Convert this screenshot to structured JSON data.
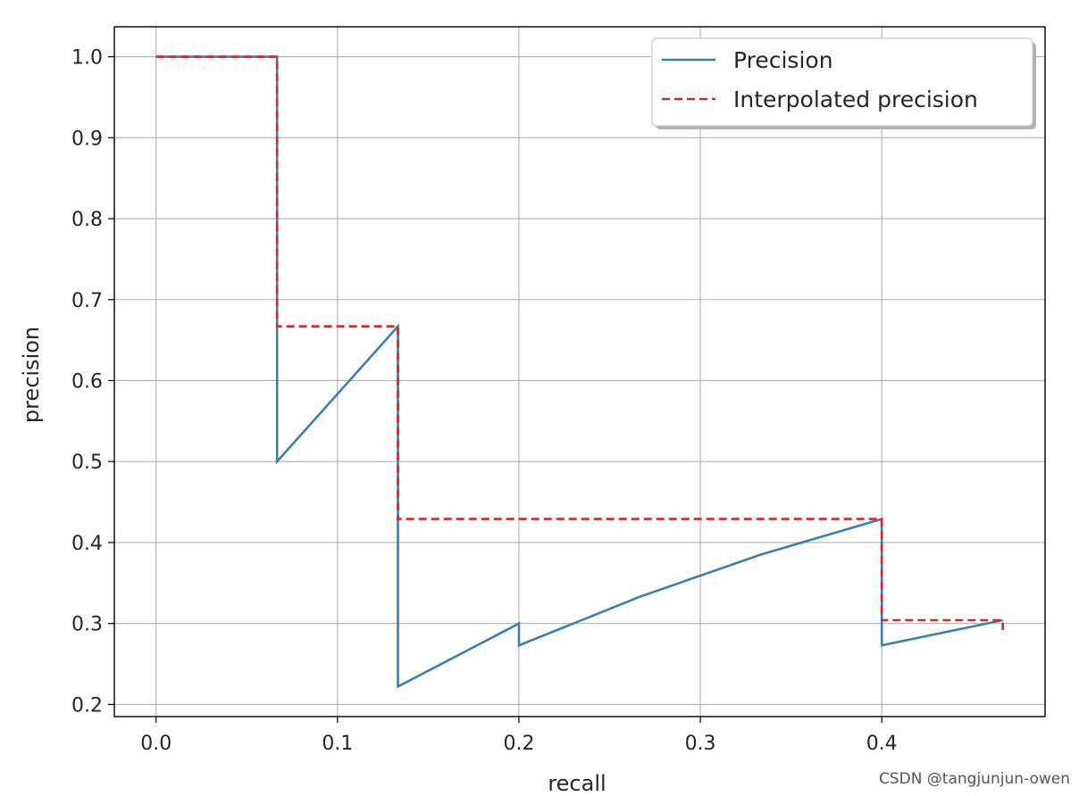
{
  "chart_data": {
    "type": "line",
    "xlabel": "recall",
    "ylabel": "precision",
    "xlim": [
      -0.023,
      0.49
    ],
    "ylim": [
      0.185,
      1.037
    ],
    "xticks": [
      "0.0",
      "0.1",
      "0.2",
      "0.3",
      "0.4"
    ],
    "xtick_values": [
      0.0,
      0.1,
      0.2,
      0.3,
      0.4
    ],
    "yticks": [
      "0.2",
      "0.3",
      "0.4",
      "0.5",
      "0.6",
      "0.7",
      "0.8",
      "0.9",
      "1.0"
    ],
    "ytick_values": [
      0.2,
      0.3,
      0.4,
      0.5,
      0.6,
      0.7,
      0.8,
      0.9,
      1.0
    ],
    "grid": true,
    "legend_position": "top-right",
    "series": [
      {
        "name": "Precision",
        "style": "solid",
        "color": "#3b80ab",
        "x": [
          0.0,
          0.0667,
          0.0667,
          0.1333,
          0.1333,
          0.1333,
          0.2,
          0.2,
          0.2667,
          0.3333,
          0.4,
          0.4,
          0.4667
        ],
        "y": [
          1.0,
          1.0,
          0.5,
          0.667,
          0.667,
          0.222,
          0.3,
          0.273,
          0.333,
          0.385,
          0.429,
          0.273,
          0.304
        ]
      },
      {
        "name": "Interpolated precision",
        "style": "dashed",
        "color": "#d62728",
        "x": [
          0.0,
          0.0667,
          0.0667,
          0.1333,
          0.1333,
          0.4,
          0.4,
          0.4667,
          0.4667
        ],
        "y": [
          1.0,
          1.0,
          0.667,
          0.667,
          0.429,
          0.429,
          0.304,
          0.304,
          0.292
        ]
      }
    ]
  },
  "watermark": "CSDN @tangjunjun-owen"
}
